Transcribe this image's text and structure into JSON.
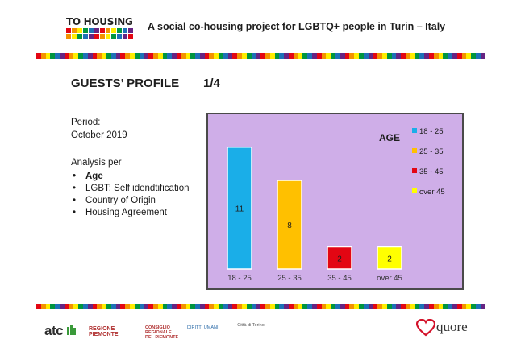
{
  "header": {
    "logo_text": "TO HOUSING",
    "title": "A social co-housing project for LGBTQ+ people in Turin – Italy"
  },
  "section": {
    "title": "GUESTS’ PROFILE",
    "page": "1/4"
  },
  "info": {
    "period_label": "Period:",
    "period_value": "October 2019",
    "analysis_label": "Analysis per",
    "analysis_items": [
      {
        "label": "Age",
        "bold": true
      },
      {
        "label": "LGBT: Self idendtification",
        "bold": false
      },
      {
        "label": "Country of Origin",
        "bold": false
      },
      {
        "label": "Housing Agreement",
        "bold": false
      }
    ]
  },
  "chart_data": {
    "type": "bar",
    "title": "AGE",
    "categories": [
      "18 - 25",
      "25 - 35",
      "35 - 45",
      "over 45"
    ],
    "values": [
      11,
      8,
      2,
      2
    ],
    "colors": [
      "#1aaee8",
      "#ffc000",
      "#e30613",
      "#ffff00"
    ],
    "ylim": [
      0,
      12
    ],
    "grid": false,
    "legend": "top-right",
    "legend_entries": [
      "18 - 25",
      "25 - 35",
      "35 - 45",
      "over 45"
    ],
    "xlabel": "",
    "ylabel": ""
  },
  "footer": {
    "atc": "atc",
    "regione": "REGIONE PIEMONTE",
    "consiglio": "CONSIGLIO REGIONALE DEL PIEMONTE",
    "diritti": "DIRITTI UMANI",
    "citta": "Città di Torino",
    "quore": "quore"
  },
  "colors": {
    "rainbow": [
      "#e30613",
      "#f39200",
      "#ffed00",
      "#009640",
      "#1d71b8",
      "#662483"
    ],
    "chart_bg": "#cfaee8"
  }
}
